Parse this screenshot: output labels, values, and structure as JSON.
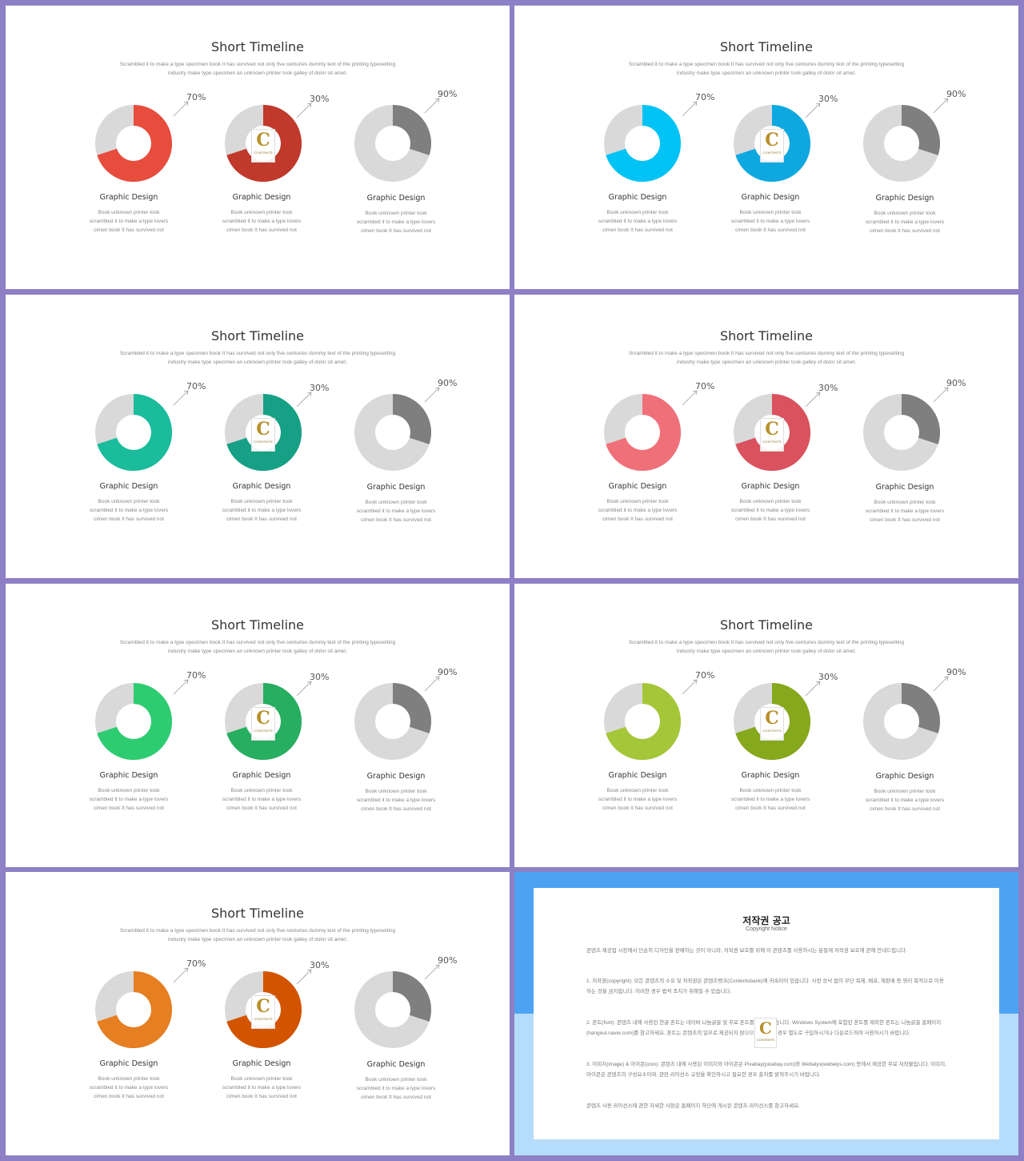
{
  "slide_common": {
    "title": "Short Timeline",
    "subtitle_line1": "Scrambled it to make a type specimen book It has survived  not only five  centuries dummy text of the printing typesetting",
    "subtitle_line2": "industry make type specimen an unknown printer took galley of dolor  sit amet.",
    "charts": [
      {
        "percent_label": "70%",
        "label": "Graphic Design",
        "desc1": "Book unknown printer took",
        "desc2": "scrambled it to make a type lovers",
        "desc3": "cimen book It has survived   not"
      },
      {
        "percent_label": "30%",
        "label": "Graphic Design",
        "desc1": "Book unknown printer took",
        "desc2": "scrambled it to make a type lovers",
        "desc3": "cimen book It has survived   not"
      },
      {
        "percent_label": "90%",
        "label": "Graphic Design",
        "desc1": "Book unknown printer took",
        "desc2": "scrambled it to make a type lovers",
        "desc3": "cimen book It has survived   not"
      }
    ],
    "logo_letter": "C",
    "logo_text": "CONTENTS"
  },
  "slides": [
    {
      "color1": "#e74c3c",
      "color2": "#c0392b"
    },
    {
      "color1": "#00c3f5",
      "color2": "#0ea8e0"
    },
    {
      "color1": "#1abc9c",
      "color2": "#16a085"
    },
    {
      "color1": "#f0707a",
      "color2": "#d9525d"
    },
    {
      "color1": "#2ecc71",
      "color2": "#27ae60"
    },
    {
      "color1": "#a4c639",
      "color2": "#86a81c"
    },
    {
      "color1": "#e67e22",
      "color2": "#d35400"
    }
  ],
  "gray_light": "#d9d9d9",
  "gray_dark": "#7f7f7f",
  "copyright": {
    "title": "저작권 공고",
    "subtitle": "Copyright Notice",
    "p1": "콘텐츠 제공업 시장에서 단순히 디자인을 판매하는 것이 아니라, 저작권 보호를 위해 이 콘텐츠를 사용하시는 분들께 저작권 보호에 관해 안내드립니다.",
    "p2": "1. 저작권(copyright): 모든 콘텐츠의 소유 및 저작권은 콘텐츠뱅크(Contentsbank)에 귀속되어 있습니다. 사전 승낙 없이 무단 복제, 배포, 재판매 등 영리 목적으로 이용하는 것을 금지합니다. 이러한 경우 법적 조치가 취해질 수 있습니다.",
    "p3": "2. 폰트(font): 콘텐츠 내에 사용된 한글 폰트는 네이버 나눔글꼴 및 무료 폰트를 사용하였습니다. Windows System에 포함된 폰트를 제외한 폰트는 나눔글꼴 홈페이지(hangeul.naver.com)를 참고하세요. 폰트는 콘텐츠의 일부로 제공되지 않으므로, 필요한 경우 별도로 구입하시거나 다운로드하여 사용하시기 바랍니다.",
    "p4": "3. 이미지(image) & 아이콘(icon): 콘텐츠 내에 사용된 이미지와 아이콘은 Pixabay(pixabay.com)와 Webalys(webalys.com) 등에서 제공한 무료 저작물입니다. 이미지, 아이콘은 콘텐츠의 구성요소이며, 관련 라이선스 규정을 확인하시고 필요한 경우 출처를 밝혀주시기 바랍니다.",
    "p5": "콘텐츠 사용 라이선스에 관한 자세한 사항은 홈페이지 하단에 게시된 콘텐츠 라이선스를 참고하세요."
  }
}
